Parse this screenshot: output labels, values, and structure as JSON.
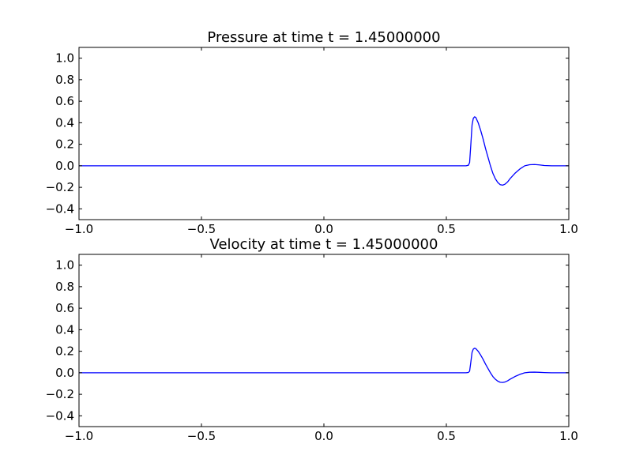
{
  "chart_data": [
    {
      "type": "line",
      "title": "Pressure at time t =     1.45000000",
      "xlabel": "",
      "ylabel": "",
      "xlim": [
        -1.0,
        1.0
      ],
      "ylim": [
        -0.5,
        1.1
      ],
      "xticks": [
        -1.0,
        -0.5,
        0.0,
        0.5,
        1.0
      ],
      "xtick_labels": [
        "−1.0",
        "−0.5",
        "0.0",
        "0.5",
        "1.0"
      ],
      "yticks": [
        -0.4,
        -0.2,
        0.0,
        0.2,
        0.4,
        0.6,
        0.8,
        1.0
      ],
      "ytick_labels": [
        "−0.4",
        "−0.2",
        "0.0",
        "0.2",
        "0.4",
        "0.6",
        "0.8",
        "1.0"
      ],
      "grid": false,
      "color": "#0000ff",
      "series": [
        {
          "x": [
            -1.0,
            -0.5,
            0.0,
            0.5,
            0.58,
            0.59,
            0.595,
            0.6,
            0.605,
            0.61,
            0.615,
            0.62,
            0.63,
            0.64,
            0.65,
            0.66,
            0.67,
            0.68,
            0.69,
            0.7,
            0.71,
            0.72,
            0.73,
            0.74,
            0.75,
            0.76,
            0.78,
            0.8,
            0.82,
            0.84,
            0.86,
            0.88,
            0.9,
            0.93,
            0.96,
            1.0
          ],
          "y": [
            0.0,
            0.0,
            0.0,
            0.0,
            0.0,
            0.005,
            0.03,
            0.2,
            0.38,
            0.44,
            0.455,
            0.45,
            0.4,
            0.33,
            0.25,
            0.16,
            0.08,
            0.0,
            -0.07,
            -0.12,
            -0.155,
            -0.175,
            -0.18,
            -0.17,
            -0.15,
            -0.12,
            -0.07,
            -0.03,
            0.0,
            0.01,
            0.012,
            0.008,
            0.003,
            0.0,
            0.0,
            0.0
          ]
        }
      ]
    },
    {
      "type": "line",
      "title": "Velocity at time t =     1.45000000",
      "xlabel": "",
      "ylabel": "",
      "xlim": [
        -1.0,
        1.0
      ],
      "ylim": [
        -0.5,
        1.1
      ],
      "xticks": [
        -1.0,
        -0.5,
        0.0,
        0.5,
        1.0
      ],
      "xtick_labels": [
        "−1.0",
        "−0.5",
        "0.0",
        "0.5",
        "1.0"
      ],
      "yticks": [
        -0.4,
        -0.2,
        0.0,
        0.2,
        0.4,
        0.6,
        0.8,
        1.0
      ],
      "ytick_labels": [
        "−0.4",
        "−0.2",
        "0.0",
        "0.2",
        "0.4",
        "0.6",
        "0.8",
        "1.0"
      ],
      "grid": false,
      "color": "#0000ff",
      "series": [
        {
          "x": [
            -1.0,
            -0.5,
            0.0,
            0.5,
            0.58,
            0.59,
            0.595,
            0.6,
            0.605,
            0.61,
            0.615,
            0.62,
            0.63,
            0.64,
            0.65,
            0.66,
            0.67,
            0.68,
            0.69,
            0.7,
            0.71,
            0.72,
            0.73,
            0.74,
            0.75,
            0.76,
            0.78,
            0.8,
            0.82,
            0.84,
            0.86,
            0.88,
            0.9,
            0.93,
            0.96,
            1.0
          ],
          "y": [
            0.0,
            0.0,
            0.0,
            0.0,
            0.0,
            0.003,
            0.015,
            0.1,
            0.19,
            0.22,
            0.228,
            0.225,
            0.2,
            0.165,
            0.125,
            0.08,
            0.04,
            0.0,
            -0.035,
            -0.06,
            -0.078,
            -0.088,
            -0.09,
            -0.085,
            -0.075,
            -0.06,
            -0.035,
            -0.015,
            0.0,
            0.005,
            0.006,
            0.004,
            0.002,
            0.0,
            0.0,
            0.0
          ]
        }
      ]
    }
  ]
}
